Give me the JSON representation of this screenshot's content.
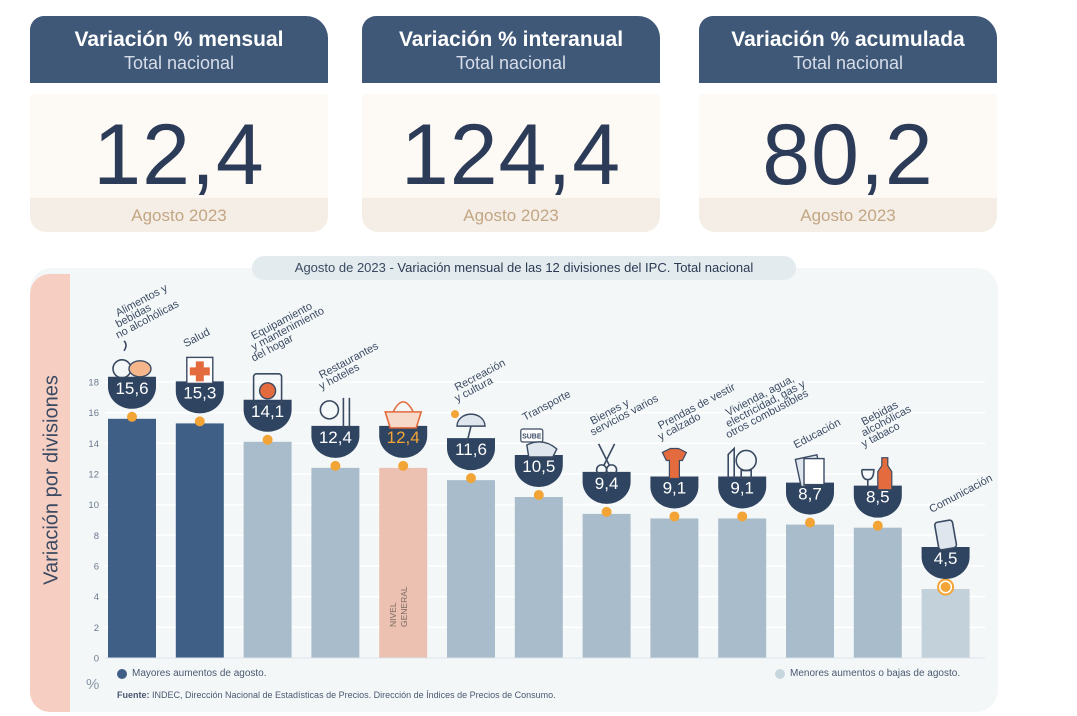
{
  "kpis": [
    {
      "title": "Variación % mensual",
      "subtitle": "Total nacional",
      "value": "12,4",
      "period": "Agosto 2023"
    },
    {
      "title": "Variación % interanual",
      "subtitle": "Total nacional",
      "value": "124,4",
      "period": "Agosto 2023"
    },
    {
      "title": "Variación % acumulada",
      "subtitle": "Total nacional",
      "value": "80,2",
      "period": "Agosto 2023"
    }
  ],
  "chart_title": {
    "lead": "Agosto de 2023 - ",
    "main": "Variación mensual de las 12 divisiones del IPC. Total nacional"
  },
  "y_axis_label": "Variación por divisiones",
  "unit_label": "%",
  "legend": {
    "high": "Mayores aumentos de agosto.",
    "low": "Menores aumentos o bajas de agosto."
  },
  "source": {
    "label": "Fuente:",
    "text": " INDEC, Dirección Nacional de Estadísticas de Precios. Dirección de Índices de Precios de Consumo."
  },
  "colors": {
    "high": "#3f5f87",
    "low": "#a9bccb",
    "lowest": "#c3d1da",
    "general": "#ecc1b2",
    "marker": "#f2a436",
    "badge": "#2f4460",
    "general_badge_text": "#f2a436"
  },
  "chart_data": {
    "type": "bar",
    "ylim": [
      0,
      18
    ],
    "yticks": [
      0,
      2,
      4,
      6,
      8,
      10,
      12,
      14,
      16,
      18
    ],
    "grid": true,
    "legend_position": "bottom",
    "categories": [
      {
        "label": [
          "Alimentos y",
          "bebidas",
          "no alcohólicas"
        ],
        "value": 15.6,
        "value_label": "15,6",
        "group": "high",
        "icon": "food-icon"
      },
      {
        "label": [
          "Salud"
        ],
        "value": 15.3,
        "value_label": "15,3",
        "group": "high",
        "icon": "health-cross-icon"
      },
      {
        "label": [
          "Equipamiento",
          "y mantenimiento",
          "del hogar"
        ],
        "value": 14.1,
        "value_label": "14,1",
        "group": "low",
        "icon": "washing-machine-icon"
      },
      {
        "label": [
          "Restaurantes",
          "y hoteles"
        ],
        "value": 12.4,
        "value_label": "12,4",
        "group": "low",
        "icon": "cutlery-icon"
      },
      {
        "label": [],
        "value": 12.4,
        "value_label": "12,4",
        "group": "general",
        "icon": "shopping-basket-icon",
        "bar_text": [
          "NIVEL",
          "GENERAL"
        ]
      },
      {
        "label": [
          "Recreación",
          "y cultura"
        ],
        "value": 11.6,
        "value_label": "11,6",
        "group": "low",
        "icon": "beach-umbrella-icon"
      },
      {
        "label": [
          "Transporte"
        ],
        "value": 10.5,
        "value_label": "10,5",
        "group": "low",
        "icon": "transport-card-icon",
        "icon_text": "SUBE"
      },
      {
        "label": [
          "Bienes y",
          "servicios varios"
        ],
        "value": 9.4,
        "value_label": "9,4",
        "group": "low",
        "icon": "scissors-comb-icon"
      },
      {
        "label": [
          "Prendas de vestir",
          "y calzado"
        ],
        "value": 9.1,
        "value_label": "9,1",
        "group": "low",
        "icon": "clothing-icon"
      },
      {
        "label": [
          "Vivienda, agua,",
          "electricidad, gas y",
          "otros combustibles"
        ],
        "value": 9.1,
        "value_label": "9,1",
        "group": "low",
        "icon": "lightbulb-icon"
      },
      {
        "label": [
          "Educación"
        ],
        "value": 8.7,
        "value_label": "8,7",
        "group": "low",
        "icon": "books-icon"
      },
      {
        "label": [
          "Bebidas",
          "alcohólicas",
          "y tabaco"
        ],
        "value": 8.5,
        "value_label": "8,5",
        "group": "low",
        "icon": "wine-bottle-icon"
      },
      {
        "label": [
          "Comunicación"
        ],
        "value": 4.5,
        "value_label": "4,5",
        "group": "lowest",
        "icon": "smartphone-icon"
      }
    ]
  }
}
